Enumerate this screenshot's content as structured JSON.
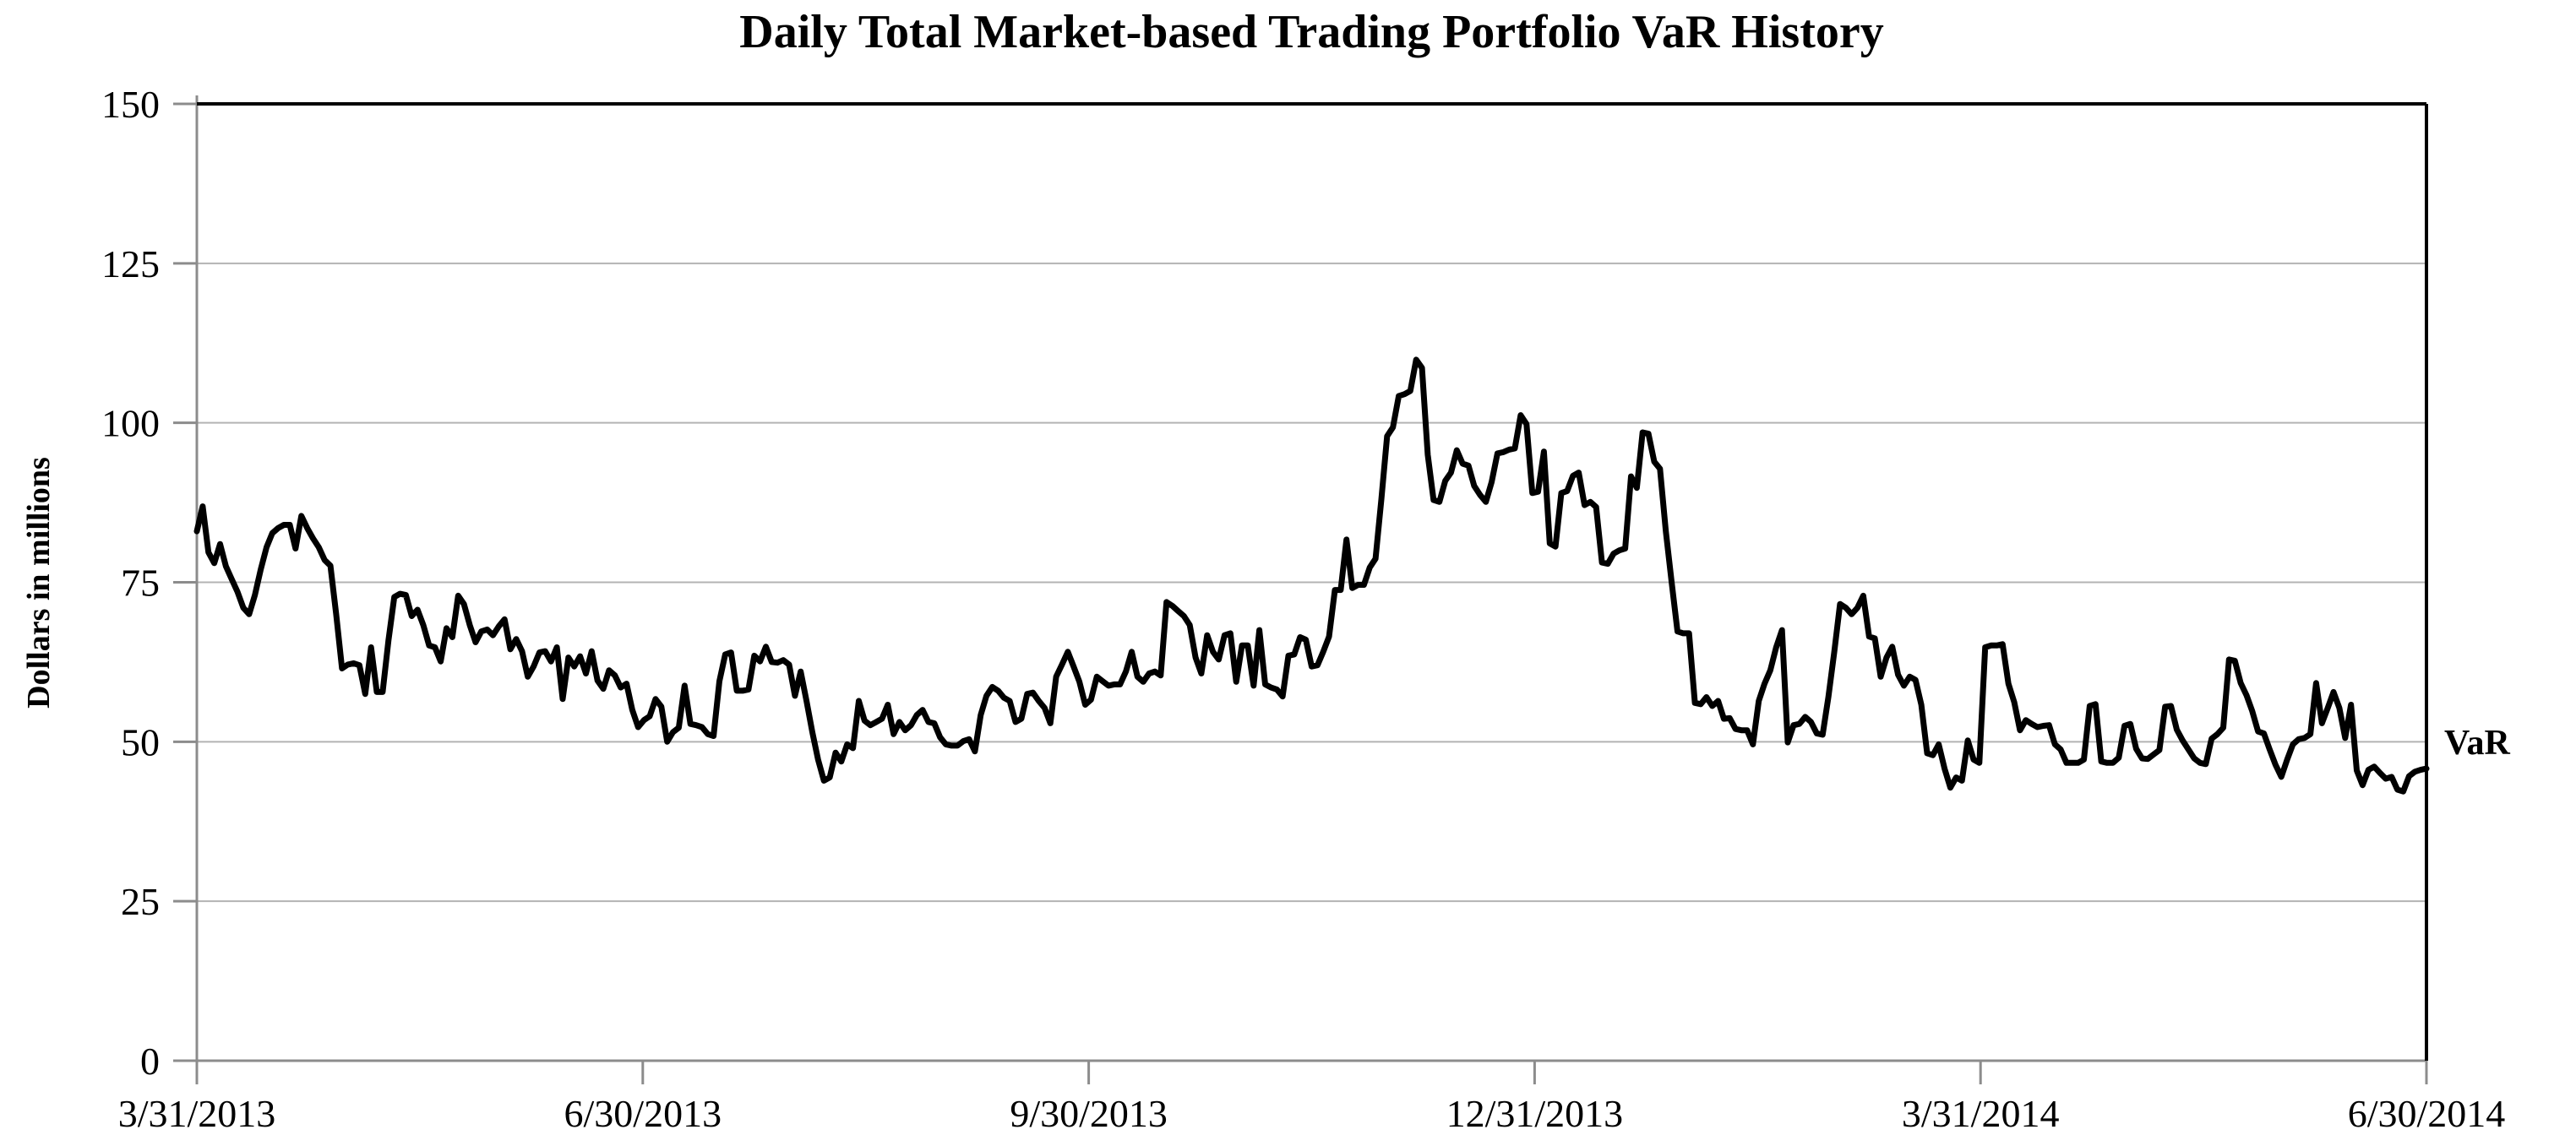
{
  "page": {
    "background": "#ffffff"
  },
  "chart_data": {
    "type": "line",
    "title": "Daily Total Market-based Trading Portfolio VaR History",
    "ylabel": "Dollars in millions",
    "series_label": "VaR",
    "ylim": [
      0,
      150
    ],
    "y_ticks": [
      0,
      25,
      50,
      75,
      100,
      125,
      150
    ],
    "x_tick_labels": [
      "3/31/2013",
      "6/30/2013",
      "9/30/2013",
      "12/31/2013",
      "3/31/2014",
      "6/30/2014"
    ],
    "grid": "horizontal-light-gray",
    "legend_position": "right-of-line-end",
    "line_color": "#000000",
    "gridline_color": "#b3b3b3",
    "axis_color": "#8c8c8c",
    "frame_color": "#000000",
    "series": [
      {
        "name": "VaR",
        "values": [
          83,
          86.9,
          79.7,
          78,
          81,
          77.5,
          75.5,
          73.5,
          71,
          70,
          73,
          77,
          80.5,
          82.7,
          83.5,
          84,
          84,
          80.3,
          85.4,
          83.5,
          81.9,
          80.5,
          78.5,
          77.6,
          70,
          61.5,
          62.1,
          62.3,
          62,
          57.5,
          64.8,
          57.8,
          57.8,
          65.9,
          72.7,
          73.2,
          73,
          69.7,
          70.7,
          68.3,
          65.1,
          64.8,
          62.6,
          67.8,
          66.4,
          72.9,
          71.6,
          68.3,
          65.6,
          67.3,
          67.6,
          66.7,
          68.1,
          69.2,
          64.5,
          66.1,
          64.2,
          60.2,
          61.8,
          64,
          64.2,
          62.6,
          64.8,
          56.7,
          63.2,
          61.8,
          63.4,
          60.7,
          64.2,
          59.6,
          58.3,
          61.2,
          60.4,
          58.5,
          59.1,
          55,
          52.3,
          53.4,
          54,
          56.7,
          55.5,
          50,
          51.5,
          52.2,
          58.8,
          52.8,
          52.6,
          52.3,
          51.2,
          50.9,
          59.5,
          63.7,
          64,
          58,
          58,
          58.2,
          63.5,
          62.6,
          64.9,
          62.5,
          62.4,
          62.8,
          62.1,
          57.2,
          61,
          56.4,
          51.5,
          47.2,
          43.9,
          44.4,
          48.3,
          46.9,
          49.6,
          49,
          56.4,
          53.3,
          52.6,
          53.1,
          53.6,
          55.8,
          51.2,
          53.1,
          51.8,
          52.6,
          54.2,
          55,
          53.1,
          52.9,
          50.7,
          49.6,
          49.4,
          49.4,
          50.1,
          50.4,
          48.5,
          54.2,
          57.2,
          58.6,
          58,
          56.9,
          56.4,
          53.1,
          53.6,
          57.5,
          57.7,
          56.4,
          55.3,
          52.9,
          60.2,
          62.1,
          64.1,
          61.8,
          59.4,
          55.8,
          56.6,
          60.2,
          59.5,
          58.8,
          59,
          59,
          61,
          64.1,
          60.2,
          59.4,
          60.7,
          61,
          60.4,
          71.9,
          71.3,
          70.5,
          69.7,
          68.3,
          63.2,
          60.7,
          66.7,
          64.1,
          62.9,
          66.7,
          67,
          59.4,
          65.1,
          65.1,
          58.8,
          67.5,
          59,
          58.5,
          58.2,
          57.1,
          63.5,
          63.7,
          66.4,
          66,
          61.8,
          62,
          64.1,
          66.5,
          73.8,
          73.8,
          81.7,
          74.1,
          74.6,
          74.6,
          77.3,
          78.7,
          88,
          97.9,
          99.3,
          104.2,
          104.5,
          105,
          109.9,
          108.6,
          95,
          87.9,
          87.6,
          90.9,
          92.2,
          95.7,
          93.6,
          93.3,
          90.1,
          88.7,
          87.6,
          90.7,
          95.2,
          95.4,
          95.8,
          96,
          101.2,
          99.8,
          89,
          89.2,
          95.5,
          81.1,
          80.6,
          89,
          89.3,
          91.7,
          92.2,
          87.1,
          87.6,
          86.8,
          78.1,
          77.9,
          79.5,
          80,
          80.3,
          91.6,
          89.8,
          98.5,
          98.3,
          93.9,
          92.8,
          83,
          75,
          67.3,
          67,
          67,
          56.1,
          55.9,
          57,
          55.6,
          56.4,
          53.6,
          53.7,
          52,
          51.8,
          51.8,
          49.6,
          56.4,
          59.1,
          61.2,
          64.8,
          67.5,
          49.9,
          52.6,
          52.8,
          53.9,
          53.1,
          51.3,
          51.1,
          57,
          64,
          71.6,
          71,
          70,
          71,
          72.9,
          66.5,
          66.2,
          60.2,
          63.2,
          64.9,
          60.5,
          58.8,
          60.2,
          59.7,
          55.8,
          48.2,
          47.9,
          49.6,
          45.8,
          42.8,
          44.4,
          43.9,
          50.2,
          47.2,
          46.7,
          64.8,
          65.1,
          65.1,
          65.3,
          59.1,
          56.2,
          51.8,
          53.4,
          52.8,
          52.3,
          52.5,
          52.6,
          49.6,
          48.8,
          46.7,
          46.7,
          46.7,
          47.2,
          55.6,
          55.9,
          46.9,
          46.7,
          46.7,
          47.5,
          52.5,
          52.8,
          48.9,
          47.4,
          47.3,
          48,
          48.7,
          55.5,
          55.6,
          51.9,
          50.2,
          48.8,
          47.4,
          46.7,
          46.5,
          50.5,
          51.2,
          52.2,
          62.9,
          62.7,
          59.2,
          57.3,
          54.8,
          51.6,
          51.3,
          48.8,
          46.4,
          44.5,
          47.2,
          49.6,
          50.4,
          50.6,
          51.2,
          59.2,
          52.9,
          55.3,
          57.8,
          55.3,
          50.6,
          55.8,
          45.5,
          43.2,
          45.6,
          46.1,
          45.1,
          44.2,
          44.5,
          42.5,
          42.2,
          44.6,
          45.3,
          45.6,
          45.8
        ]
      }
    ]
  }
}
